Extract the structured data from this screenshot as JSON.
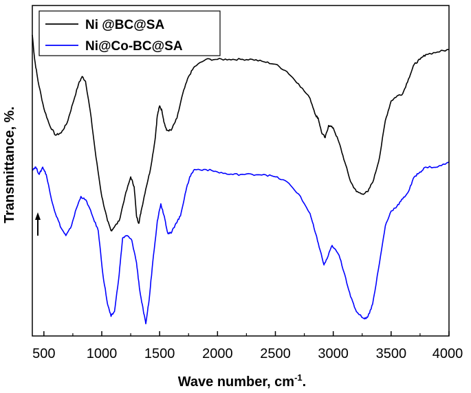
{
  "chart_data": {
    "type": "line",
    "title": "",
    "xlabel": "Wave number, cm",
    "xlabel_superscript": "-1",
    "xlabel_suffix": ".",
    "ylabel": "Transmittance, %.",
    "xlim": [
      400,
      4000
    ],
    "x_ticks": [
      "500",
      "1000",
      "1500",
      "2000",
      "2500",
      "3000",
      "3500",
      "4000"
    ],
    "x_tick_values": [
      500,
      1000,
      1500,
      2000,
      2500,
      3000,
      3500,
      4000
    ],
    "y_ticks_labeled": false,
    "grid": false,
    "legend_position": "top-left",
    "annotation": "arrow",
    "series": [
      {
        "name": "Ni @BC@SA",
        "color": "#000000",
        "points": [
          [
            400,
            88
          ],
          [
            420,
            78
          ],
          [
            450,
            69
          ],
          [
            500,
            58
          ],
          [
            550,
            51
          ],
          [
            600,
            47
          ],
          [
            650,
            48
          ],
          [
            700,
            52
          ],
          [
            750,
            60
          ],
          [
            800,
            68
          ],
          [
            830,
            71
          ],
          [
            860,
            69
          ],
          [
            900,
            57
          ],
          [
            950,
            38
          ],
          [
            1000,
            22
          ],
          [
            1050,
            12
          ],
          [
            1080,
            8
          ],
          [
            1100,
            9
          ],
          [
            1150,
            12
          ],
          [
            1200,
            22
          ],
          [
            1250,
            30
          ],
          [
            1280,
            26
          ],
          [
            1300,
            14
          ],
          [
            1320,
            11
          ],
          [
            1340,
            16
          ],
          [
            1380,
            25
          ],
          [
            1420,
            33
          ],
          [
            1460,
            45
          ],
          [
            1480,
            55
          ],
          [
            1500,
            59
          ],
          [
            1520,
            57
          ],
          [
            1540,
            52
          ],
          [
            1560,
            49
          ],
          [
            1600,
            49
          ],
          [
            1650,
            54
          ],
          [
            1700,
            64
          ],
          [
            1750,
            71
          ],
          [
            1800,
            75
          ],
          [
            1900,
            78
          ],
          [
            2000,
            78
          ],
          [
            2100,
            78
          ],
          [
            2200,
            78
          ],
          [
            2300,
            78
          ],
          [
            2400,
            77
          ],
          [
            2500,
            76
          ],
          [
            2600,
            73
          ],
          [
            2700,
            68
          ],
          [
            2800,
            62
          ],
          [
            2850,
            55
          ],
          [
            2870,
            54
          ],
          [
            2900,
            48
          ],
          [
            2930,
            46
          ],
          [
            2960,
            51
          ],
          [
            3000,
            50
          ],
          [
            3050,
            44
          ],
          [
            3100,
            36
          ],
          [
            3150,
            28
          ],
          [
            3200,
            24
          ],
          [
            3250,
            23
          ],
          [
            3300,
            24
          ],
          [
            3350,
            29
          ],
          [
            3400,
            38
          ],
          [
            3450,
            53
          ],
          [
            3500,
            61
          ],
          [
            3550,
            63
          ],
          [
            3600,
            64
          ],
          [
            3650,
            70
          ],
          [
            3700,
            76
          ],
          [
            3750,
            78
          ],
          [
            3800,
            80
          ],
          [
            3900,
            81
          ],
          [
            4000,
            82
          ]
        ]
      },
      {
        "name": "Ni@Co-BC@SA",
        "color": "#0000ff",
        "points": [
          [
            400,
            33
          ],
          [
            430,
            34
          ],
          [
            460,
            31
          ],
          [
            490,
            34
          ],
          [
            520,
            31
          ],
          [
            560,
            22
          ],
          [
            600,
            15
          ],
          [
            650,
            9
          ],
          [
            690,
            6
          ],
          [
            730,
            9
          ],
          [
            780,
            17
          ],
          [
            820,
            22
          ],
          [
            870,
            20
          ],
          [
            920,
            14
          ],
          [
            970,
            8
          ],
          [
            1010,
            -10
          ],
          [
            1050,
            -22
          ],
          [
            1080,
            -27
          ],
          [
            1110,
            -25
          ],
          [
            1150,
            -10
          ],
          [
            1180,
            5
          ],
          [
            1220,
            6
          ],
          [
            1260,
            4
          ],
          [
            1300,
            -5
          ],
          [
            1330,
            -17
          ],
          [
            1360,
            -25
          ],
          [
            1380,
            -30
          ],
          [
            1410,
            -20
          ],
          [
            1440,
            -5
          ],
          [
            1480,
            12
          ],
          [
            1510,
            19
          ],
          [
            1540,
            14
          ],
          [
            1570,
            7
          ],
          [
            1600,
            7
          ],
          [
            1640,
            11
          ],
          [
            1680,
            14
          ],
          [
            1720,
            23
          ],
          [
            1760,
            30
          ],
          [
            1800,
            33
          ],
          [
            1900,
            33
          ],
          [
            2000,
            32
          ],
          [
            2100,
            31
          ],
          [
            2200,
            31
          ],
          [
            2300,
            31
          ],
          [
            2400,
            31
          ],
          [
            2500,
            30
          ],
          [
            2600,
            28
          ],
          [
            2700,
            23
          ],
          [
            2800,
            15
          ],
          [
            2840,
            8
          ],
          [
            2870,
            3
          ],
          [
            2920,
            -6
          ],
          [
            2950,
            -3
          ],
          [
            2990,
            2
          ],
          [
            3050,
            -2
          ],
          [
            3100,
            -10
          ],
          [
            3150,
            -19
          ],
          [
            3200,
            -25
          ],
          [
            3270,
            -28
          ],
          [
            3300,
            -27
          ],
          [
            3340,
            -22
          ],
          [
            3400,
            -5
          ],
          [
            3450,
            10
          ],
          [
            3500,
            16
          ],
          [
            3550,
            18
          ],
          [
            3600,
            21
          ],
          [
            3650,
            24
          ],
          [
            3700,
            30
          ],
          [
            3750,
            32
          ],
          [
            3800,
            34
          ],
          [
            3900,
            34
          ],
          [
            4000,
            36
          ]
        ]
      }
    ]
  }
}
